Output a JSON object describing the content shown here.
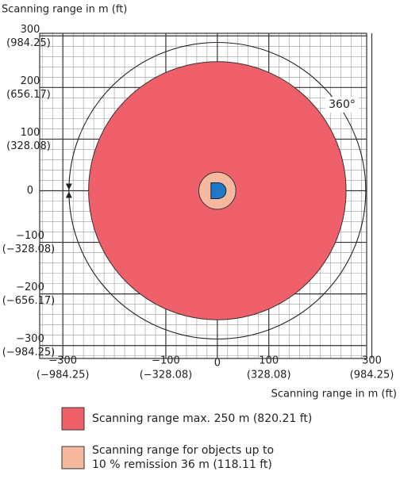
{
  "chart_data": {
    "type": "scanning-range",
    "y_axis_label": "Scanning range in m (ft)",
    "x_axis_label": "Scanning range in m (ft)",
    "annotation": "360°",
    "xlim": [
      -345,
      290
    ],
    "ylim": [
      -325,
      305
    ],
    "xticks": [
      {
        "value": -300,
        "label": "−300"
      },
      {
        "value": -100,
        "label": "−100"
      },
      0,
      100,
      300
    ],
    "xticks_ft": [
      "(−984.25)",
      "(−328.08)",
      null,
      "(328.08)",
      "(984.25)"
    ],
    "yticks": [
      300,
      200,
      100,
      0,
      {
        "value": -100,
        "label": "−100"
      },
      {
        "value": -200,
        "label": "−200"
      },
      {
        "value": -300,
        "label": "−300"
      }
    ],
    "yticks_ft": [
      "(984.25)",
      "(656.17)",
      "(328.08)",
      null,
      "(−328.08)",
      "(−656.17)",
      "(−984.25)"
    ],
    "grid": true,
    "series": [
      {
        "name": [
          "Scanning range max. 250 m (820.21 ft)"
        ],
        "color": "#f0606a",
        "values": [
          250
        ]
      },
      {
        "name": [
          "Scanning range for objects up to",
          "10 % remission 36 m (118.11 ft)"
        ],
        "color": "#f7b8a0",
        "values": [
          36
        ]
      }
    ]
  }
}
